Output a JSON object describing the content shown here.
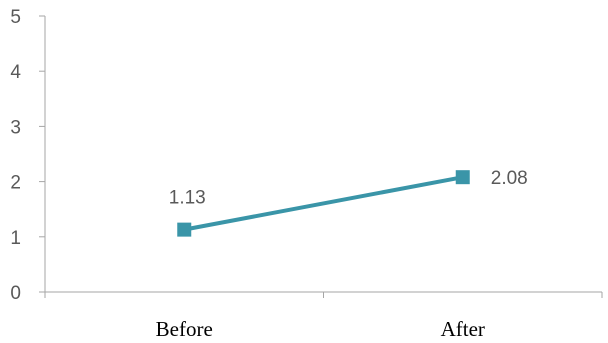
{
  "chart_data": {
    "type": "line",
    "categories": [
      "Before",
      "After"
    ],
    "series": [
      {
        "values": [
          1.13,
          2.08
        ]
      }
    ],
    "data_labels": [
      "1.13",
      "2.08"
    ],
    "ylim": [
      0,
      5
    ],
    "yticks": [
      0,
      1,
      2,
      3,
      4,
      5
    ],
    "ytick_labels": [
      "0",
      "1",
      "2",
      "3",
      "4",
      "5"
    ],
    "grid": false,
    "legend": "none",
    "colors": {
      "series": "#3A95A8",
      "axis": "#A6A6A6",
      "tick_text": "#595959",
      "category_text": "#000000"
    }
  }
}
